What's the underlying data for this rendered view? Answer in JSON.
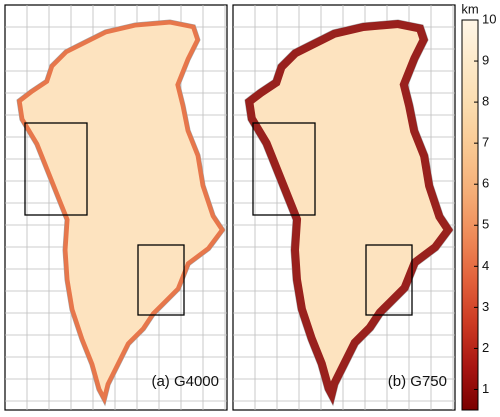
{
  "panels": [
    {
      "label": "(a) G4000",
      "edge_color": "#e46a3e"
    },
    {
      "label": "(b) G750",
      "edge_color": "#8e0b0b"
    }
  ],
  "colorbar": {
    "label": "km",
    "lim": [
      0.5,
      10
    ],
    "ticks": [
      1,
      2,
      3,
      4,
      5,
      6,
      7,
      8,
      9,
      10
    ],
    "colors": [
      "#7a0000",
      "#a81512",
      "#cc3a23",
      "#e2613b",
      "#ee8a58",
      "#f5ad76",
      "#f9c791",
      "#fbdcae",
      "#fde9c9",
      "#fff6e8"
    ]
  }
}
